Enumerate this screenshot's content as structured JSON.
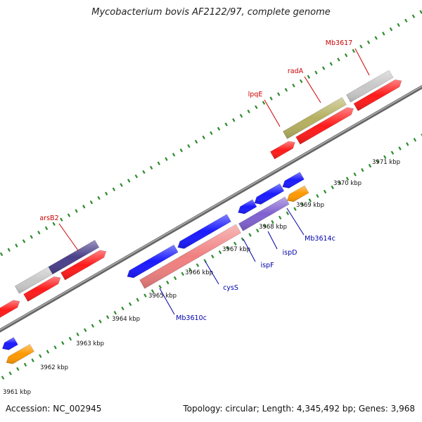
{
  "title": "Mycobacterium bovis AF2122/97, complete genome",
  "footer": {
    "accession": "Accession: NC_002945",
    "summary": "Topology: circular; Length: 4,345,492 bp; Genes: 3,968"
  },
  "colors": {
    "backbone": "#8a8a8a",
    "tick": "#2e8b2e",
    "forward_label": "#cc0000",
    "reverse_label": "#0000aa",
    "red_feature": "#ff1a1a",
    "blue_feature": "#1a1aff",
    "orange_feature": "#ff9900",
    "gray_feature": "#c8c8c8",
    "olive_feature": "#b5b060",
    "navy_feature": "#4a3f8a",
    "pink_feature": "#f08080",
    "lavender_feature": "#8060d0"
  },
  "kbp_labels": [
    {
      "id": "kbp-3961",
      "text": "3961 kbp"
    },
    {
      "id": "kbp-3962",
      "text": "3962 kbp"
    },
    {
      "id": "kbp-3963",
      "text": "3963 kbp"
    },
    {
      "id": "kbp-3964",
      "text": "3964 kbp"
    },
    {
      "id": "kbp-3965",
      "text": "3965 kbp"
    },
    {
      "id": "kbp-3966",
      "text": "3966 kbp"
    },
    {
      "id": "kbp-3967",
      "text": "3967 kbp"
    },
    {
      "id": "kbp-3968",
      "text": "3968 kbp"
    },
    {
      "id": "kbp-3969",
      "text": "3969 kbp"
    },
    {
      "id": "kbp-3970",
      "text": "3970 kbp"
    },
    {
      "id": "kbp-3971",
      "text": "3971 kbp"
    }
  ],
  "gene_labels": [
    {
      "id": "lpqE",
      "text": "lpqE",
      "strand": "forward"
    },
    {
      "id": "radA",
      "text": "radA",
      "strand": "forward"
    },
    {
      "id": "Mb3617",
      "text": "Mb3617",
      "strand": "forward"
    },
    {
      "id": "arsB2",
      "text": "arsB2",
      "strand": "forward"
    },
    {
      "id": "Mb3614c",
      "text": "Mb3614c",
      "strand": "reverse"
    },
    {
      "id": "ispD",
      "text": "ispD",
      "strand": "reverse"
    },
    {
      "id": "ispF",
      "text": "ispF",
      "strand": "reverse"
    },
    {
      "id": "cysS",
      "text": "cysS",
      "strand": "reverse"
    },
    {
      "id": "Mb3610c",
      "text": "Mb3610c",
      "strand": "reverse"
    }
  ]
}
